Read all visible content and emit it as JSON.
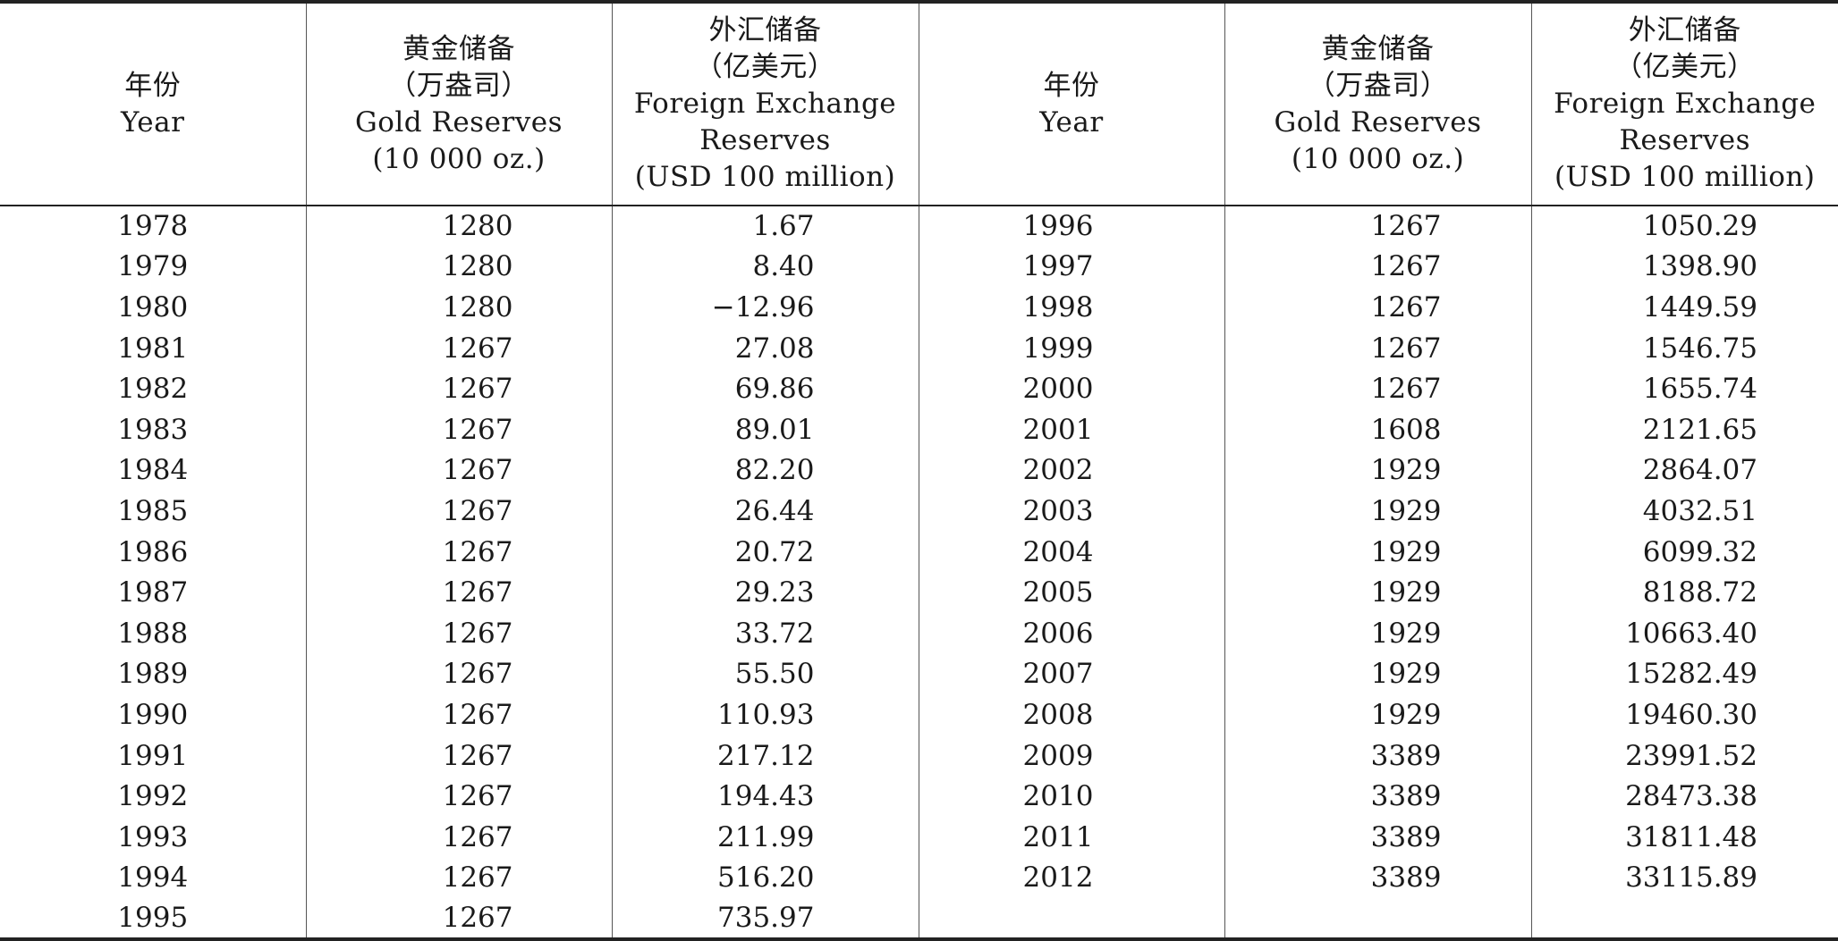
{
  "headers": {
    "year": {
      "zh": "年份",
      "en": "Year"
    },
    "gold": {
      "zh": "黄金储备",
      "unit_zh": "（万盎司）",
      "en": "Gold Reserves",
      "unit_en": "(10 000 oz.)"
    },
    "fx": {
      "zh": "外汇储备",
      "unit_zh": "（亿美元）",
      "en1": "Foreign Exchange",
      "en2": "Reserves",
      "unit_en": "(USD 100 million)"
    }
  },
  "rows": [
    {
      "y1": "1978",
      "g1": "1280",
      "f1": "1.67",
      "y2": "1996",
      "g2": "1267",
      "f2": "1050.29"
    },
    {
      "y1": "1979",
      "g1": "1280",
      "f1": "8.40",
      "y2": "1997",
      "g2": "1267",
      "f2": "1398.90"
    },
    {
      "y1": "1980",
      "g1": "1280",
      "f1": "−12.96",
      "y2": "1998",
      "g2": "1267",
      "f2": "1449.59"
    },
    {
      "y1": "1981",
      "g1": "1267",
      "f1": "27.08",
      "y2": "1999",
      "g2": "1267",
      "f2": "1546.75"
    },
    {
      "y1": "1982",
      "g1": "1267",
      "f1": "69.86",
      "y2": "2000",
      "g2": "1267",
      "f2": "1655.74"
    },
    {
      "y1": "1983",
      "g1": "1267",
      "f1": "89.01",
      "y2": "2001",
      "g2": "1608",
      "f2": "2121.65"
    },
    {
      "y1": "1984",
      "g1": "1267",
      "f1": "82.20",
      "y2": "2002",
      "g2": "1929",
      "f2": "2864.07"
    },
    {
      "y1": "1985",
      "g1": "1267",
      "f1": "26.44",
      "y2": "2003",
      "g2": "1929",
      "f2": "4032.51"
    },
    {
      "y1": "1986",
      "g1": "1267",
      "f1": "20.72",
      "y2": "2004",
      "g2": "1929",
      "f2": "6099.32"
    },
    {
      "y1": "1987",
      "g1": "1267",
      "f1": "29.23",
      "y2": "2005",
      "g2": "1929",
      "f2": "8188.72"
    },
    {
      "y1": "1988",
      "g1": "1267",
      "f1": "33.72",
      "y2": "2006",
      "g2": "1929",
      "f2": "10663.40"
    },
    {
      "y1": "1989",
      "g1": "1267",
      "f1": "55.50",
      "y2": "2007",
      "g2": "1929",
      "f2": "15282.49"
    },
    {
      "y1": "1990",
      "g1": "1267",
      "f1": "110.93",
      "y2": "2008",
      "g2": "1929",
      "f2": "19460.30"
    },
    {
      "y1": "1991",
      "g1": "1267",
      "f1": "217.12",
      "y2": "2009",
      "g2": "3389",
      "f2": "23991.52"
    },
    {
      "y1": "1992",
      "g1": "1267",
      "f1": "194.43",
      "y2": "2010",
      "g2": "3389",
      "f2": "28473.38"
    },
    {
      "y1": "1993",
      "g1": "1267",
      "f1": "211.99",
      "y2": "2011",
      "g2": "3389",
      "f2": "31811.48"
    },
    {
      "y1": "1994",
      "g1": "1267",
      "f1": "516.20",
      "y2": "2012",
      "g2": "3389",
      "f2": "33115.89"
    },
    {
      "y1": "1995",
      "g1": "1267",
      "f1": "735.97",
      "y2": "",
      "g2": "",
      "f2": ""
    }
  ]
}
